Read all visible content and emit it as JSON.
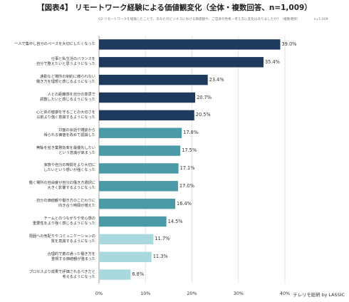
{
  "chart_data": {
    "type": "bar",
    "orientation": "horizontal",
    "title": "【図表4】 リモートワーク経験による価値観変化（全体・複数回答、n=1,009）",
    "subtitle": "Q3 リモートワークを経験したことで、あなたのビジネスにおける価値観や、ご自身の性格・考え方に変化はありましたか？（複数選択）",
    "sample_note": "n=1,009",
    "categories": [
      "一人で集中し自分のペースを大切にしたくなった",
      "仕事と私生活のバランスを\n自分で整えたいと思うようになった",
      "通勤など場所の制約に縛られない\n働き方を理想と感じるようになった",
      "人との距離感を自分の意思で\n調整したいと感じるようになった",
      "心と体の健康を守ることの大切さを\n以前より強く意識するようになった",
      "対面の会話や雑談から\n得られる価値を改めて認識した",
      "無駄を省き業務効率を最優先したい\nという意識が高まった",
      "家族や自分の時間をより大切に\nしたいという想いが強くなった",
      "働く場所の自由度が自分の働き方選択に\n大きく影響するようになった",
      "自分の価値観や働き方のこだわりに\n向き合う時間が増えた",
      "チームとのつながりや安心感の\n重要性をより強く感じるようになった",
      "周囲への気配りやコミュニケーションの\n質を意識するようになった",
      "合理的で筋の通った働き方を\n重視する価値観が強まった",
      "プロセスより成果で評価されるべきだと\n考えるようになった"
    ],
    "values": [
      39.0,
      35.4,
      23.4,
      20.7,
      20.5,
      17.8,
      17.5,
      17.1,
      17.0,
      16.4,
      14.5,
      11.7,
      11.3,
      6.8
    ],
    "value_labels": [
      "39.0%",
      "35.4%",
      "23.4%",
      "20.7%",
      "20.5%",
      "17.8%",
      "17.5%",
      "17.1%",
      "17.0%",
      "16.4%",
      "14.5%",
      "11.7%",
      "11.3%",
      "6.8%"
    ],
    "bar_colors": [
      "#1f3a5f",
      "#1f3a5f",
      "#1f3a5f",
      "#1f3a5f",
      "#1f3a5f",
      "#4a9aa8",
      "#4a9aa8",
      "#4a9aa8",
      "#4a9aa8",
      "#4a9aa8",
      "#4a9aa8",
      "#a9d8de",
      "#a9d8de",
      "#a9d8de"
    ],
    "xlim": [
      0,
      40
    ],
    "xticks": [
      0,
      10,
      20,
      30,
      40
    ],
    "xtick_labels": [
      "0%",
      "10%",
      "20%",
      "30%",
      "40%"
    ],
    "grid": true,
    "legend": "none"
  },
  "credit": "テレリモ総研 by LASSIC"
}
